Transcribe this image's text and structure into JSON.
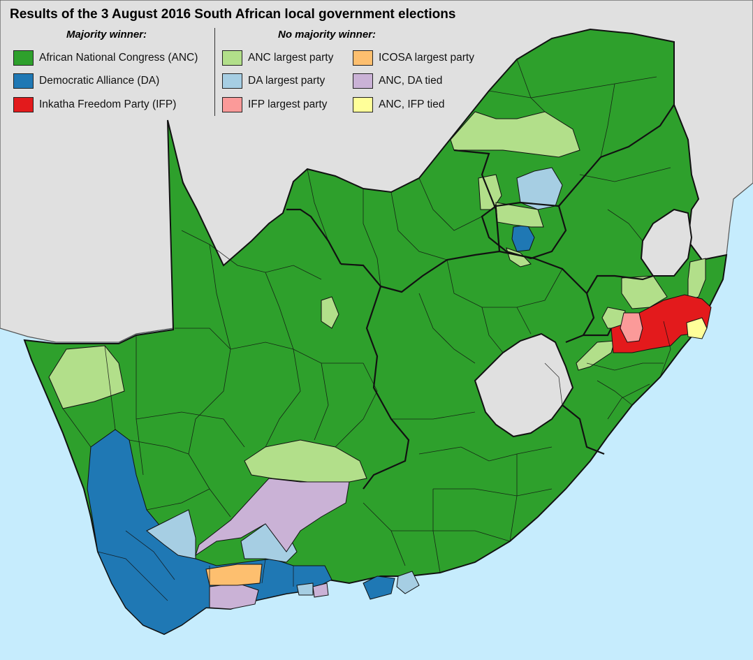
{
  "title": "Results of the 3 August 2016 South African local government elections",
  "legend": {
    "majority_heading": "Majority winner:",
    "no_majority_heading": "No majority winner:",
    "majority": [
      {
        "label": "African National Congress (ANC)",
        "color": "#2ea02c"
      },
      {
        "label": "Democratic Alliance (DA)",
        "color": "#1f78b4"
      },
      {
        "label": "Inkatha Freedom Party (IFP)",
        "color": "#e31a1c"
      }
    ],
    "no_majority_col1": [
      {
        "label": "ANC largest party",
        "color": "#b2df8a"
      },
      {
        "label": "DA largest party",
        "color": "#a6cee3"
      },
      {
        "label": "IFP largest party",
        "color": "#fb9a99"
      }
    ],
    "no_majority_col2": [
      {
        "label": "ICOSA largest party",
        "color": "#fdbf6f"
      },
      {
        "label": "ANC, DA tied",
        "color": "#cab2d6"
      },
      {
        "label": "ANC, IFP tied",
        "color": "#ffff99"
      }
    ]
  },
  "colors": {
    "sea": "#c6ecfd",
    "neighbours": "#e0e0e0",
    "anc": "#2ea02c",
    "da": "#1f78b4",
    "ifp": "#e31a1c",
    "anc_largest": "#b2df8a",
    "da_largest": "#a6cee3",
    "ifp_largest": "#fb9a99",
    "icosa_largest": "#fdbf6f",
    "anc_da_tied": "#cab2d6",
    "anc_ifp_tied": "#ffff99"
  }
}
